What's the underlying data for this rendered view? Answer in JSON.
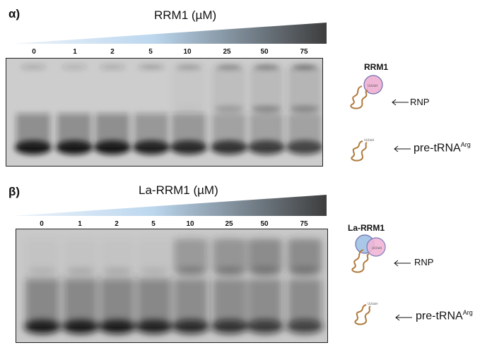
{
  "panels": [
    {
      "letter": "α)",
      "title": "RRM1 (µM)",
      "concentrations": [
        "0",
        "1",
        "2",
        "5",
        "10",
        "25",
        "50",
        "75"
      ],
      "cartoon_title": "RRM1",
      "rnp_label": "RNP",
      "pre_label": "pre-tRNA",
      "pre_sup": "Arg",
      "uuu_tag": "UUUoH"
    },
    {
      "letter": "β)",
      "title": "La-RRM1 (µM)",
      "concentrations": [
        "0",
        "1",
        "2",
        "5",
        "10",
        "25",
        "50",
        "75"
      ],
      "cartoon_title": "La-RRM1",
      "rnp_label": "RNP",
      "pre_label": "pre-tRNA",
      "pre_sup": "Arg",
      "uuu_tag": "UUUoH"
    }
  ],
  "colors": {
    "wedge_start": "#c9ddf3",
    "wedge_mid": "#bcd7ee",
    "wedge_end": "#4a4a4a",
    "gel_bg": "#cfcfcf",
    "band": "#1a1a1a",
    "trna_strand": "#b07a3c",
    "rrm1_circle": "#f0b6d6",
    "la_circle": "#a9c7e6"
  }
}
